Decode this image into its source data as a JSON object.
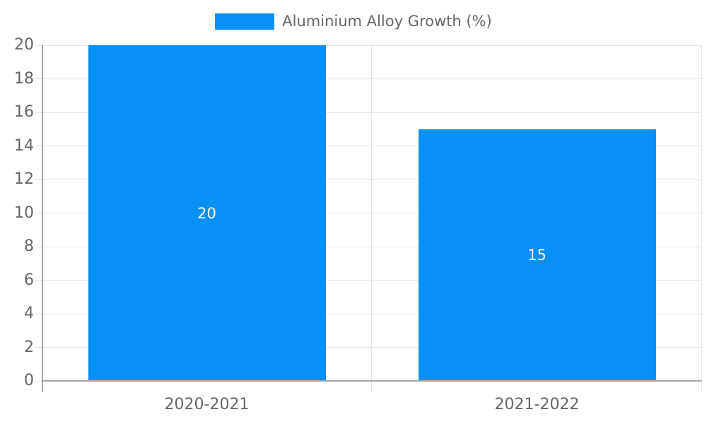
{
  "legend": {
    "label": "Aluminium Alloy Growth (%)"
  },
  "chart_data": {
    "type": "bar",
    "title": "",
    "xlabel": "",
    "ylabel": "",
    "categories": [
      "2020-2021",
      "2021-2022"
    ],
    "series": [
      {
        "name": "Aluminium Alloy Growth (%)",
        "values": [
          20,
          15
        ]
      }
    ],
    "data_labels": [
      "20",
      "15"
    ],
    "ylim": [
      0,
      20
    ],
    "ytick_step": 2,
    "yticks": [
      "0",
      "2",
      "4",
      "6",
      "8",
      "10",
      "12",
      "14",
      "16",
      "18",
      "20"
    ],
    "grid": true,
    "legend_position": "top-center",
    "bar_width_ratio": 0.72,
    "colors": {
      "bar": "#0890F5",
      "grid": "#e5e5e5",
      "axis": "#a6a6a6",
      "tick_text": "#666666",
      "data_label_text": "#ffffff",
      "background": "#ffffff"
    }
  }
}
